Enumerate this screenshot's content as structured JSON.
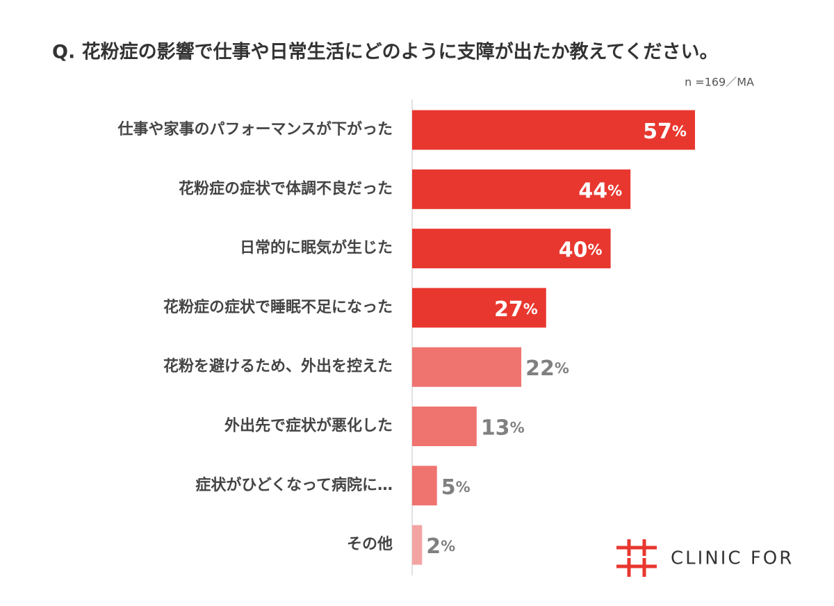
{
  "chart_data": {
    "type": "bar",
    "orientation": "horizontal",
    "title": "Q. 花粉症の影響で仕事や日常生活にどのように支障が出たか教えてください。",
    "note": "n =169／MA",
    "categories": [
      "仕事や家事のパフォーマンスが下がった",
      "花粉症の症状で体調不良だった",
      "日常的に眠気が生じた",
      "花粉症の症状で睡眠不足になった",
      "花粉を避けるため、外出を控えた",
      "外出先で症状が悪化した",
      "症状がひどくなって病院に…",
      "その他"
    ],
    "values": [
      57,
      44,
      40,
      27,
      22,
      13,
      5,
      2
    ],
    "value_labels": [
      "57%",
      "44%",
      "40%",
      "27%",
      "22%",
      "13%",
      "5%",
      "2%"
    ],
    "colors": [
      "#e8372f",
      "#e8372f",
      "#e8372f",
      "#e8372f",
      "#ef7470",
      "#ef7470",
      "#ef7470",
      "#f4a3a3"
    ]
  },
  "logo": {
    "text": "CLINIC FOR"
  }
}
